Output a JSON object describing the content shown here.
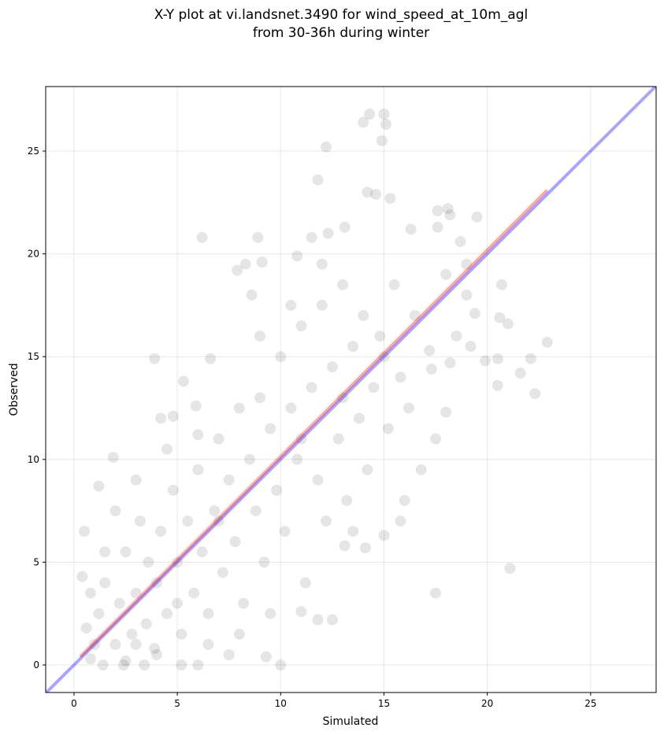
{
  "chart_data": {
    "type": "scatter",
    "title": [
      "X-Y plot at vi.landsnet.3490 for wind_speed_at_10m_agl",
      "from 30-36h during winter"
    ],
    "xlabel": "Simulated",
    "ylabel": "Observed",
    "xlim": [
      -1.37,
      28.17
    ],
    "ylim": [
      -1.34,
      28.14
    ],
    "xticks": [
      0,
      5,
      10,
      15,
      20,
      25
    ],
    "yticks": [
      0,
      5,
      10,
      15,
      20,
      25
    ],
    "grid": true,
    "color": "#000000",
    "x": [
      14.3,
      15,
      14,
      15.1,
      14.9,
      12.2,
      11.8,
      14.2,
      14.6,
      15.3,
      17.6,
      18.1,
      18.2,
      19.5,
      16.3,
      17.6,
      13.1,
      12.3,
      6.2,
      8.9,
      18.7,
      21,
      22.3,
      22.9,
      21.6,
      22.1,
      20.5,
      20.5,
      21.1,
      17.5,
      0.5,
      0.4,
      1.2,
      1.9,
      3.9,
      5.3,
      6.6,
      5.9,
      4.2,
      4.8,
      7.9,
      8.3,
      8.6,
      9.1,
      10.8,
      11.5,
      19,
      20.7,
      20.6,
      19.2,
      18.2,
      18,
      17.3,
      19.4,
      19.9,
      15,
      15.8,
      14.1,
      13.1,
      12.5,
      11.8,
      11,
      10,
      9.3,
      7.5,
      6,
      5.2,
      3.4,
      2.4,
      1.4,
      0.8,
      1,
      1.2,
      0.8,
      0.6,
      1.5,
      2,
      2.2,
      2.5,
      2.8,
      3,
      3.2,
      3.5,
      3.6,
      3.9,
      4,
      4.2,
      4.5,
      4.8,
      5,
      5.2,
      5.5,
      5.8,
      6,
      6.2,
      6.5,
      6.8,
      7,
      7.2,
      7.5,
      7.8,
      8,
      8.2,
      8.5,
      8.8,
      9,
      9.2,
      9.5,
      9.8,
      10,
      10.2,
      10.5,
      10.8,
      11,
      11.2,
      11.5,
      11.8,
      12,
      12.2,
      12.5,
      12.8,
      13,
      13.2,
      13.5,
      13.8,
      14,
      14.2,
      14.5,
      14.8,
      15.2,
      15.5,
      15.8,
      16.2,
      16.5,
      16.8,
      17.2,
      17.5,
      18,
      18.5,
      19,
      16,
      13.5,
      9.5,
      8,
      3,
      4.5,
      6,
      2,
      1.5,
      10.5,
      9,
      12,
      6.5,
      4,
      2.5,
      11,
      7,
      5,
      3,
      15,
      13
    ],
    "values": [
      26.8,
      26.8,
      26.4,
      26.3,
      25.5,
      25.2,
      23.6,
      23,
      22.9,
      22.7,
      22.1,
      22.2,
      21.9,
      21.8,
      21.2,
      21.3,
      21.3,
      21,
      20.8,
      20.8,
      20.6,
      16.6,
      13.2,
      15.7,
      14.2,
      14.9,
      14.9,
      13.6,
      4.7,
      3.5,
      6.5,
      4.3,
      8.7,
      10.1,
      14.9,
      13.8,
      14.9,
      12.6,
      12,
      12.1,
      19.2,
      19.5,
      18,
      19.6,
      19.9,
      20.8,
      18,
      18.5,
      16.9,
      15.5,
      14.7,
      12.3,
      14.4,
      17.1,
      14.8,
      6.3,
      7,
      5.7,
      5.8,
      2.2,
      2.2,
      2.6,
      0,
      0.4,
      0.5,
      0,
      0,
      0,
      0,
      0,
      0.3,
      1,
      2.5,
      3.5,
      1.8,
      4,
      1,
      3,
      5.5,
      1.5,
      3.5,
      7,
      2,
      5,
      0.8,
      4,
      6.5,
      2.5,
      8.5,
      5,
      1.5,
      7,
      3.5,
      9.5,
      5.5,
      2.5,
      7.5,
      11,
      4.5,
      9,
      6,
      12.5,
      3,
      10,
      7.5,
      13,
      5,
      11.5,
      8.5,
      15,
      6.5,
      12.5,
      10,
      16.5,
      4,
      13.5,
      9,
      17.5,
      7,
      14.5,
      11,
      18.5,
      8,
      15.5,
      12,
      17,
      9.5,
      13.5,
      16,
      11.5,
      18.5,
      14,
      12.5,
      17,
      9.5,
      15.3,
      11,
      19,
      16,
      19.5,
      8,
      6.5,
      2.5,
      1.5,
      9,
      10.5,
      11.2,
      7.5,
      5.5,
      17.5,
      16,
      19.5,
      1,
      0.5,
      0.2,
      11,
      7,
      3,
      1,
      15,
      13
    ],
    "lines": [
      {
        "color": "#0000ff",
        "x": [
          -1.37,
          28.17
        ],
        "values": [
          -1.37,
          28.17
        ]
      },
      {
        "color": "#ff0000",
        "x": [
          0.3,
          22.9
        ],
        "values": [
          0.4,
          23.1
        ]
      }
    ]
  }
}
